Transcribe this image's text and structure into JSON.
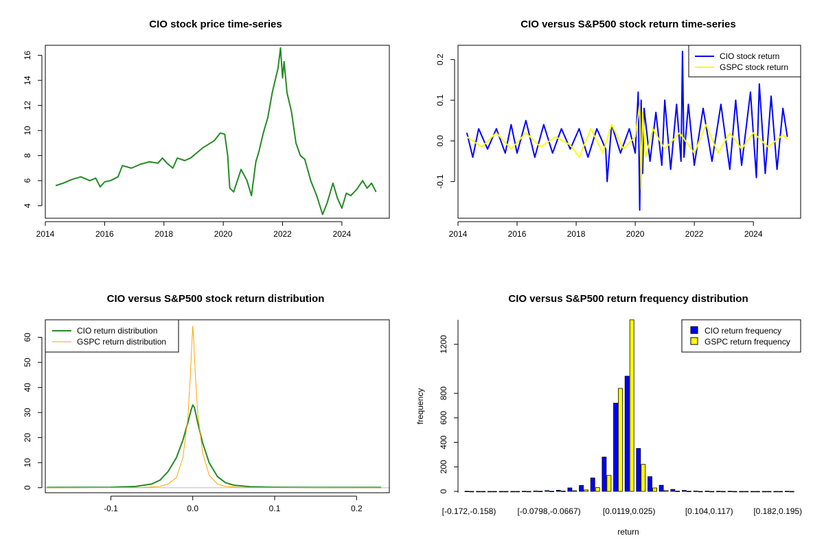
{
  "chart_data": [
    {
      "id": "price",
      "type": "line",
      "title": "CIO stock price time-series",
      "xlabel": "",
      "ylabel": "",
      "xlim": [
        2014.0,
        2025.6
      ],
      "ylim": [
        3.0,
        16.8
      ],
      "x_ticks": [
        2014,
        2016,
        2018,
        2020,
        2022,
        2024
      ],
      "x_tick_labels": [
        "2014",
        "2016",
        "2018",
        "2020",
        "2022",
        "2024"
      ],
      "y_ticks": [
        4,
        6,
        8,
        10,
        12,
        14,
        16
      ],
      "y_tick_labels": [
        "4",
        "6",
        "8",
        "10",
        "12",
        "14",
        "16"
      ],
      "grid": false,
      "series": [
        {
          "color": "#228b22",
          "x": [
            2014.35,
            2014.6,
            2014.9,
            2015.2,
            2015.5,
            2015.7,
            2015.85,
            2016.0,
            2016.2,
            2016.45,
            2016.6,
            2016.9,
            2017.2,
            2017.5,
            2017.8,
            2017.95,
            2018.1,
            2018.3,
            2018.45,
            2018.7,
            2018.9,
            2019.1,
            2019.3,
            2019.5,
            2019.7,
            2019.9,
            2020.05,
            2020.15,
            2020.22,
            2020.35,
            2020.6,
            2020.8,
            2020.95,
            2021.1,
            2021.2,
            2021.35,
            2021.5,
            2021.65,
            2021.75,
            2021.85,
            2021.93,
            2022.0,
            2022.05,
            2022.15,
            2022.3,
            2022.45,
            2022.6,
            2022.75,
            2022.95,
            2023.15,
            2023.35,
            2023.5,
            2023.7,
            2023.85,
            2024.0,
            2024.15,
            2024.3,
            2024.5,
            2024.7,
            2024.85,
            2025.0,
            2025.15
          ],
          "y": [
            5.6,
            5.8,
            6.1,
            6.3,
            6.0,
            6.2,
            5.5,
            5.9,
            6.0,
            6.3,
            7.2,
            7.0,
            7.3,
            7.5,
            7.4,
            7.8,
            7.4,
            7.0,
            7.8,
            7.6,
            7.8,
            8.2,
            8.6,
            8.9,
            9.2,
            9.8,
            9.7,
            8.0,
            5.4,
            5.1,
            6.9,
            6.0,
            4.8,
            7.5,
            8.3,
            9.8,
            11.0,
            13.0,
            14.0,
            15.0,
            16.6,
            14.2,
            15.5,
            13.0,
            11.5,
            9.0,
            8.0,
            7.7,
            6.0,
            4.8,
            3.3,
            4.2,
            5.8,
            4.6,
            3.8,
            5.0,
            4.8,
            5.3,
            6.0,
            5.4,
            5.8,
            5.1
          ]
        }
      ]
    },
    {
      "id": "returns",
      "type": "line",
      "title": "CIO versus S&P500 stock return time-series",
      "xlabel": "",
      "ylabel": "",
      "xlim": [
        2014.0,
        2025.6
      ],
      "ylim": [
        -0.19,
        0.235
      ],
      "x_ticks": [
        2014,
        2016,
        2018,
        2020,
        2022,
        2024
      ],
      "x_tick_labels": [
        "2014",
        "2016",
        "2018",
        "2020",
        "2022",
        "2024"
      ],
      "y_ticks": [
        -0.1,
        0.0,
        0.1,
        0.2
      ],
      "y_tick_labels": [
        "-0.1",
        "0.0",
        "0.1",
        "0.2"
      ],
      "grid": false,
      "legend_position": "top-right",
      "series": [
        {
          "name": "CIO stock return",
          "color": "#0000ff",
          "x": [
            2014.3,
            2014.5,
            2014.7,
            2015.0,
            2015.3,
            2015.6,
            2015.8,
            2016.0,
            2016.3,
            2016.6,
            2016.9,
            2017.2,
            2017.5,
            2017.8,
            2018.1,
            2018.4,
            2018.7,
            2019.0,
            2019.05,
            2019.2,
            2019.5,
            2019.8,
            2020.0,
            2020.1,
            2020.15,
            2020.2,
            2020.25,
            2020.3,
            2020.5,
            2020.7,
            2020.9,
            2021.0,
            2021.2,
            2021.4,
            2021.55,
            2021.6,
            2021.65,
            2021.8,
            2022.0,
            2022.3,
            2022.6,
            2022.9,
            2023.2,
            2023.4,
            2023.6,
            2023.9,
            2024.1,
            2024.2,
            2024.4,
            2024.6,
            2024.8,
            2025.0,
            2025.15
          ],
          "y": [
            0.02,
            -0.04,
            0.03,
            -0.02,
            0.03,
            -0.03,
            0.04,
            -0.03,
            0.05,
            -0.04,
            0.04,
            -0.03,
            0.03,
            -0.02,
            0.03,
            -0.04,
            0.03,
            -0.02,
            -0.1,
            0.04,
            -0.03,
            0.03,
            -0.03,
            0.12,
            -0.17,
            0.1,
            -0.08,
            0.08,
            -0.05,
            0.07,
            -0.06,
            0.1,
            -0.07,
            0.09,
            -0.05,
            0.22,
            -0.04,
            0.09,
            -0.06,
            0.08,
            -0.05,
            0.09,
            -0.07,
            0.1,
            -0.06,
            0.12,
            -0.09,
            0.14,
            -0.08,
            0.11,
            -0.07,
            0.08,
            0.01
          ]
        },
        {
          "name": "GSPC stock return",
          "color": "#ffff00",
          "x": [
            2014.3,
            2014.8,
            2015.3,
            2015.8,
            2016.3,
            2016.8,
            2017.3,
            2017.8,
            2018.1,
            2018.5,
            2018.9,
            2019.2,
            2019.6,
            2020.0,
            2020.15,
            2020.2,
            2020.25,
            2020.35,
            2020.6,
            2021.0,
            2021.5,
            2022.0,
            2022.4,
            2022.8,
            2023.2,
            2023.6,
            2024.0,
            2024.5,
            2025.0,
            2025.15
          ],
          "y": [
            0.01,
            -0.015,
            0.02,
            -0.02,
            0.02,
            -0.015,
            0.01,
            -0.01,
            -0.04,
            0.03,
            -0.03,
            0.04,
            -0.02,
            0.01,
            0.09,
            -0.12,
            0.07,
            -0.04,
            0.03,
            -0.02,
            0.02,
            -0.03,
            0.04,
            -0.03,
            0.02,
            -0.02,
            0.02,
            -0.015,
            0.015,
            0.005
          ]
        }
      ]
    },
    {
      "id": "density",
      "type": "line",
      "title": "CIO versus S&P500 stock return distribution",
      "xlabel": "",
      "ylabel": "",
      "xlim": [
        -0.18,
        0.24
      ],
      "ylim": [
        -2,
        67
      ],
      "x_ticks": [
        -0.1,
        0.0,
        0.1,
        0.2
      ],
      "x_tick_labels": [
        "-0.1",
        "0.0",
        "0.1",
        "0.2"
      ],
      "y_ticks": [
        0,
        10,
        20,
        30,
        40,
        50,
        60
      ],
      "y_tick_labels": [
        "0",
        "10",
        "20",
        "30",
        "40",
        "50",
        "60"
      ],
      "grid": false,
      "legend_position": "top-left",
      "series": [
        {
          "name": "CIO return distribution",
          "color": "#228b22",
          "x": [
            -0.178,
            -0.1,
            -0.07,
            -0.05,
            -0.04,
            -0.03,
            -0.02,
            -0.012,
            -0.006,
            -0.002,
            0.0,
            0.002,
            0.006,
            0.012,
            0.02,
            0.03,
            0.04,
            0.05,
            0.07,
            0.1,
            0.15,
            0.23
          ],
          "y": [
            0.1,
            0.2,
            0.5,
            1.5,
            3,
            6.5,
            12,
            19,
            26,
            31,
            33,
            32,
            26,
            18,
            10,
            4.5,
            2,
            1,
            0.4,
            0.2,
            0.1,
            0.1
          ]
        },
        {
          "name": "GSPC return distribution",
          "color": "#ffa500",
          "x": [
            -0.178,
            -0.06,
            -0.04,
            -0.03,
            -0.02,
            -0.012,
            -0.006,
            -0.003,
            -0.001,
            0.0,
            0.001,
            0.003,
            0.006,
            0.012,
            0.02,
            0.03,
            0.04,
            0.06,
            0.23
          ],
          "y": [
            0.0,
            0.1,
            0.5,
            1.5,
            4,
            12,
            28,
            44,
            58,
            64.5,
            60,
            46,
            30,
            14,
            5,
            1.5,
            0.5,
            0.1,
            0.0
          ]
        }
      ]
    },
    {
      "id": "histogram",
      "type": "bar",
      "title": "CIO versus S&P500 return frequency distribution",
      "xlabel": "return",
      "ylabel": "frequency",
      "ylim": [
        0,
        1400
      ],
      "y_ticks": [
        0,
        200,
        400,
        600,
        800,
        1200
      ],
      "y_tick_labels": [
        "0",
        "200",
        "400",
        "600",
        "800",
        "1200"
      ],
      "x_tick_labels": [
        "[-0.172,-0.158)",
        "[-0.0798,-0.0667)",
        "[0.0119,0.025)",
        "[0.104,0.117)",
        "[0.182,0.195)"
      ],
      "x_tick_bins": [
        0,
        7,
        14,
        21,
        27
      ],
      "grid": false,
      "legend_position": "top-right",
      "series": [
        {
          "name": "CIO return frequency",
          "color": "#0000ff",
          "values": [
            1,
            0,
            0,
            0,
            0,
            1,
            3,
            6,
            9,
            28,
            48,
            110,
            280,
            720,
            940,
            350,
            120,
            50,
            16,
            8,
            3,
            2,
            1,
            1,
            0,
            0,
            0,
            0,
            1
          ]
        },
        {
          "name": "GSPC return frequency",
          "color": "#ffff00",
          "values": [
            0,
            0,
            0,
            0,
            0,
            0,
            1,
            1,
            2,
            5,
            12,
            30,
            130,
            840,
            1400,
            220,
            28,
            6,
            2,
            1,
            0,
            0,
            0,
            0,
            0,
            0,
            0,
            0,
            0
          ]
        }
      ]
    }
  ]
}
